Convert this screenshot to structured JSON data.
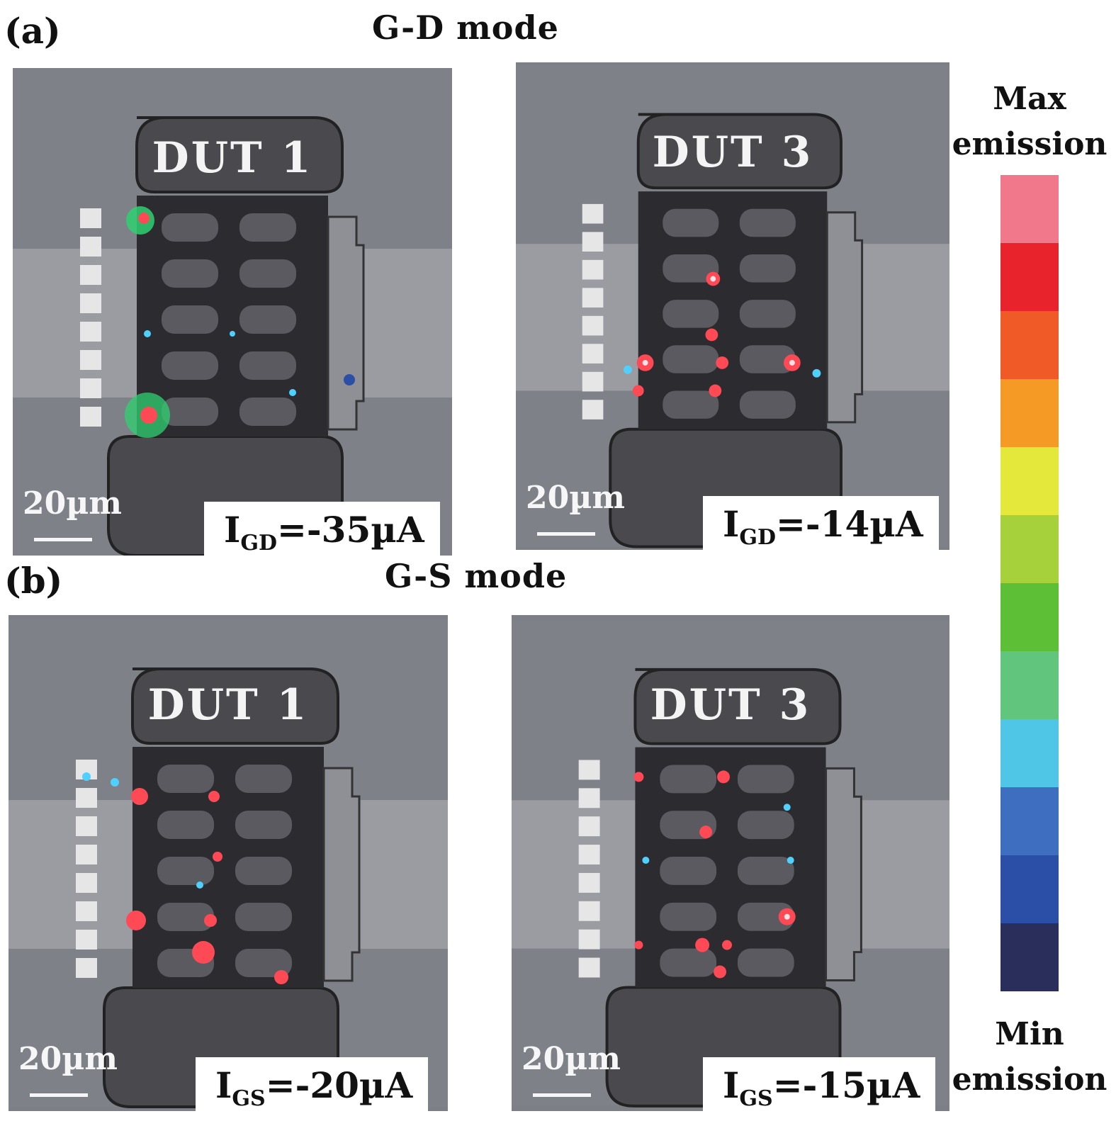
{
  "figure": {
    "panel_a": {
      "label": "(a)",
      "mode": "G-D mode",
      "images": [
        {
          "dut": "DUT 1",
          "scale": "20µm",
          "current_sym": "I",
          "current_sub": "GD",
          "current_val": "=-35µA"
        },
        {
          "dut": "DUT 3",
          "scale": "20µm",
          "current_sym": "I",
          "current_sub": "GD",
          "current_val": "=-14µA"
        }
      ]
    },
    "panel_b": {
      "label": "(b)",
      "mode": "G-S mode",
      "images": [
        {
          "dut": "DUT 1",
          "scale": "20µm",
          "current_sym": "I",
          "current_sub": "GS",
          "current_val": "=-20µA"
        },
        {
          "dut": "DUT 3",
          "scale": "20µm",
          "current_sym": "I",
          "current_sub": "GS",
          "current_val": "=-15µA"
        }
      ]
    },
    "colorbar": {
      "max_line1": "Max",
      "max_line2": "emission",
      "min_line1": "Min",
      "min_line2": "emission",
      "colors_top_to_bottom": [
        "#f0788a",
        "#e8232b",
        "#ef5a26",
        "#f59a25",
        "#e3e83a",
        "#a6d13a",
        "#5cbf35",
        "#62c57e",
        "#4fc6e6",
        "#3d6ebf",
        "#2b4fa6",
        "#2a2e5a"
      ]
    }
  }
}
